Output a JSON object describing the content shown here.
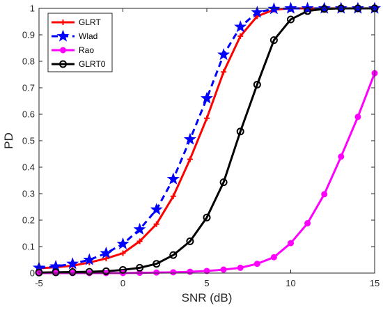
{
  "chart_data": {
    "type": "line",
    "xlabel": "SNR (dB)",
    "ylabel": "PD",
    "xlim": [
      -5,
      15
    ],
    "ylim": [
      0,
      1
    ],
    "xticks": [
      "-5",
      "0",
      "5",
      "10",
      "15"
    ],
    "yticks": [
      "0",
      "0.1",
      "0.2",
      "0.3",
      "0.4",
      "0.5",
      "0.6",
      "0.7",
      "0.8",
      "0.9",
      "1"
    ],
    "grid": false,
    "legend_position": "top-left",
    "x": [
      -5,
      -4,
      -3,
      -2,
      -1,
      0,
      1,
      2,
      3,
      4,
      5,
      6,
      7,
      8,
      9,
      10,
      11,
      12,
      13,
      14,
      15
    ],
    "series": [
      {
        "name": "GLRT",
        "color": "#ff0000",
        "line_style": "solid",
        "marker": "plus",
        "values": [
          0.018,
          0.022,
          0.028,
          0.04,
          0.055,
          0.075,
          0.12,
          0.185,
          0.29,
          0.43,
          0.585,
          0.76,
          0.895,
          0.97,
          0.995,
          1.0,
          1.0,
          1.0,
          1.0,
          1.0,
          1.0
        ]
      },
      {
        "name": "Wlad",
        "color": "#0000ff",
        "line_style": "dashed",
        "marker": "star",
        "values": [
          0.02,
          0.025,
          0.035,
          0.05,
          0.075,
          0.11,
          0.165,
          0.24,
          0.355,
          0.505,
          0.66,
          0.825,
          0.93,
          0.985,
          0.998,
          1.0,
          1.0,
          1.0,
          1.0,
          1.0,
          1.0
        ]
      },
      {
        "name": "Rao",
        "color": "#ff00ff",
        "line_style": "solid",
        "marker": "filled-circle",
        "values": [
          0.0,
          0.0,
          0.0,
          0.0,
          0.0,
          0.0,
          0.001,
          0.002,
          0.003,
          0.005,
          0.008,
          0.013,
          0.02,
          0.035,
          0.06,
          0.113,
          0.188,
          0.298,
          0.44,
          0.59,
          0.755
        ]
      },
      {
        "name": "GLRT0",
        "color": "#000000",
        "line_style": "solid",
        "marker": "open-circle",
        "values": [
          0.002,
          0.003,
          0.004,
          0.005,
          0.007,
          0.012,
          0.02,
          0.035,
          0.068,
          0.12,
          0.21,
          0.343,
          0.535,
          0.712,
          0.88,
          0.958,
          0.99,
          0.998,
          1.0,
          1.0,
          1.0
        ]
      }
    ]
  }
}
